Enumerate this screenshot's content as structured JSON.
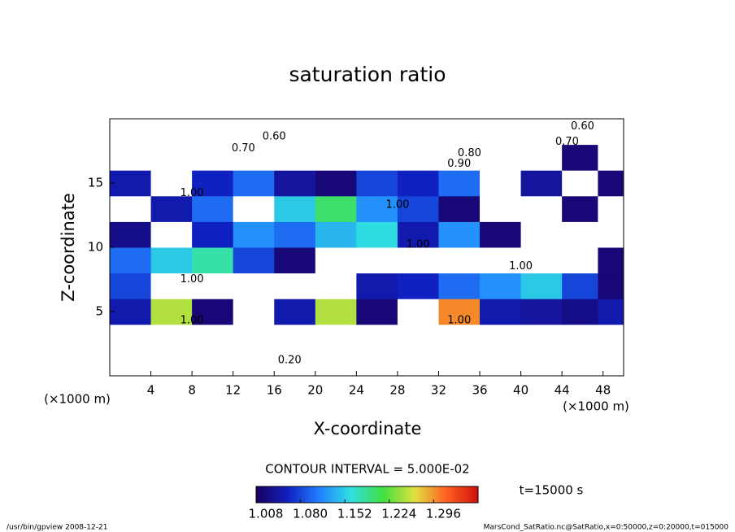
{
  "chart_data": {
    "type": "heatmap",
    "title": "saturation ratio",
    "x_label": "X-coordinate",
    "y_label": "Z-coordinate",
    "x_unit": "(×1000 m)",
    "y_unit": "(×1000 m)",
    "x": [
      2,
      6,
      10,
      14,
      18,
      22,
      26,
      30,
      34,
      38,
      42,
      46,
      49
    ],
    "y": [
      1,
      3,
      5,
      7,
      9,
      11,
      13,
      15,
      17,
      19
    ],
    "z": [
      [
        0.15,
        0.15,
        0.15,
        0.15,
        0.15,
        0.15,
        0.15,
        0.15,
        0.15,
        0.15,
        0.15,
        0.15,
        0.15
      ],
      [
        0.55,
        0.55,
        0.55,
        0.55,
        0.55,
        0.55,
        0.55,
        0.55,
        0.55,
        0.55,
        0.55,
        0.55,
        0.55
      ],
      [
        1.05,
        1.25,
        1.02,
        0.98,
        1.05,
        1.25,
        1.02,
        0.98,
        1.3,
        1.05,
        1.04,
        1.03,
        1.05
      ],
      [
        1.08,
        0.95,
        0.97,
        0.96,
        0.98,
        0.95,
        1.05,
        1.06,
        1.1,
        1.12,
        1.15,
        1.08,
        1.02
      ],
      [
        1.1,
        1.15,
        1.18,
        1.08,
        1.02,
        0.97,
        0.96,
        0.95,
        0.97,
        1.0,
        0.98,
        0.97,
        1.02
      ],
      [
        1.03,
        0.98,
        1.06,
        1.12,
        1.1,
        1.14,
        1.16,
        1.05,
        1.12,
        1.02,
        0.97,
        0.96,
        0.98
      ],
      [
        0.97,
        1.05,
        1.1,
        0.98,
        1.15,
        1.2,
        1.12,
        1.08,
        1.02,
        0.99,
        0.98,
        1.02,
        0.97
      ],
      [
        1.05,
        0.98,
        1.06,
        1.1,
        1.04,
        1.02,
        1.08,
        1.06,
        1.1,
        0.98,
        1.04,
        0.98,
        1.02
      ],
      [
        0.85,
        0.88,
        0.9,
        0.87,
        0.9,
        0.88,
        0.86,
        0.9,
        0.92,
        0.88,
        0.9,
        1.02,
        0.95
      ],
      [
        0.75,
        0.7,
        0.72,
        0.68,
        0.65,
        0.7,
        0.72,
        0.68,
        0.75,
        0.7,
        0.72,
        0.65,
        0.7
      ]
    ],
    "xlim": [
      0,
      50
    ],
    "ylim": [
      0,
      20
    ],
    "xticks": [
      4,
      8,
      12,
      16,
      20,
      24,
      28,
      32,
      36,
      40,
      44,
      48
    ],
    "yticks": [
      5,
      10,
      15
    ],
    "clim": [
      1.008,
      1.368
    ],
    "cticks": [
      1.008,
      {
        "value": 1.08,
        "label": "1.080"
      },
      1.152,
      1.224,
      1.296
    ],
    "colors": [
      "#1a0060",
      "#1020c0",
      "#2080ff",
      "#30e0e0",
      "#40e040",
      "#e0e040",
      "#ff6020",
      "#d01010"
    ],
    "contour_interval": "CONTOUR INTERVAL = 5.000E-02",
    "time_label": "t=15000 s",
    "annotations": [
      {
        "text": "0.60",
        "x": 46,
        "y": 19.4
      },
      {
        "text": "0.70",
        "x": 44.5,
        "y": 18.2
      },
      {
        "text": "0.70",
        "x": 13,
        "y": 17.7
      },
      {
        "text": "0.60",
        "x": 16,
        "y": 18.6
      },
      {
        "text": "0.80",
        "x": 35,
        "y": 17.3
      },
      {
        "text": "0.90",
        "x": 34,
        "y": 16.5
      },
      {
        "text": "1.00",
        "x": 8,
        "y": 14.2
      },
      {
        "text": "1.00",
        "x": 28,
        "y": 13.3
      },
      {
        "text": "1.00",
        "x": 30,
        "y": 10.2
      },
      {
        "text": "1.00",
        "x": 40,
        "y": 8.5
      },
      {
        "text": "1.00",
        "x": 8,
        "y": 7.5
      },
      {
        "text": "1.00",
        "x": 8,
        "y": 4.3
      },
      {
        "text": "1.00",
        "x": 34,
        "y": 4.3
      },
      {
        "text": "0.20",
        "x": 17.5,
        "y": 1.2
      }
    ],
    "footer_left": "/usr/bin/gpview  2008-12-21",
    "footer_right": "MarsCond_SatRatio.nc@SatRatio,x=0:50000,z=0:20000,t=015000"
  }
}
